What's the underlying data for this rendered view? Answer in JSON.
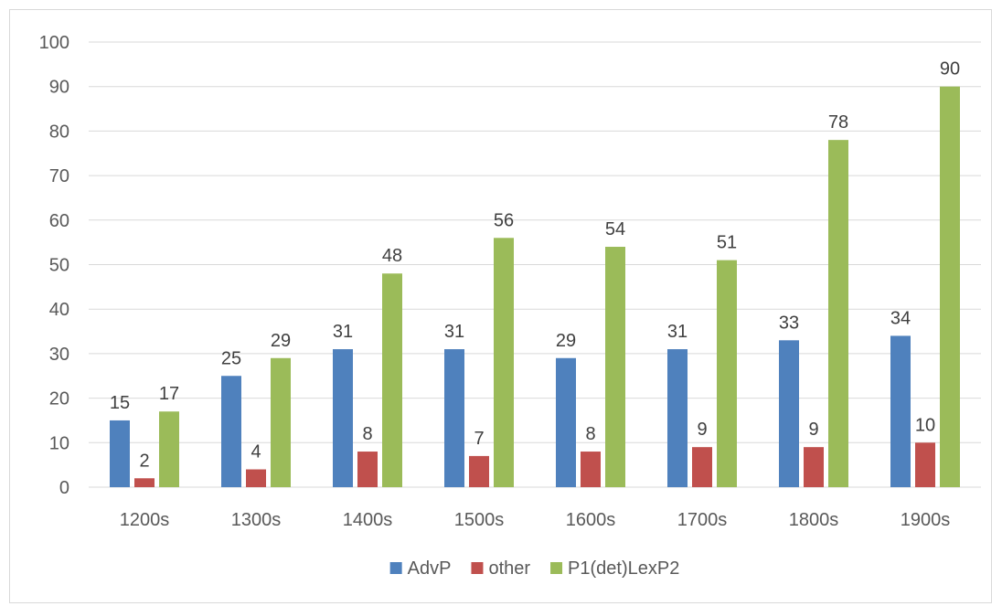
{
  "chart_data": {
    "type": "bar",
    "title": "",
    "xlabel": "",
    "ylabel": "",
    "ylim": [
      0,
      100
    ],
    "yticks": [
      0,
      10,
      20,
      30,
      40,
      50,
      60,
      70,
      80,
      90,
      100
    ],
    "grid": true,
    "legend_position": "bottom",
    "categories": [
      "1200s",
      "1300s",
      "1400s",
      "1500s",
      "1600s",
      "1700s",
      "1800s",
      "1900s"
    ],
    "series": [
      {
        "name": "AdvP",
        "color": "#4f81bd",
        "values": [
          15,
          25,
          31,
          31,
          29,
          31,
          33,
          34
        ]
      },
      {
        "name": "other",
        "color": "#c0504d",
        "values": [
          2,
          4,
          8,
          7,
          8,
          9,
          9,
          10
        ]
      },
      {
        "name": "P1(det)LexP2",
        "color": "#9bbb59",
        "values": [
          17,
          29,
          48,
          56,
          54,
          51,
          78,
          90
        ]
      }
    ]
  }
}
